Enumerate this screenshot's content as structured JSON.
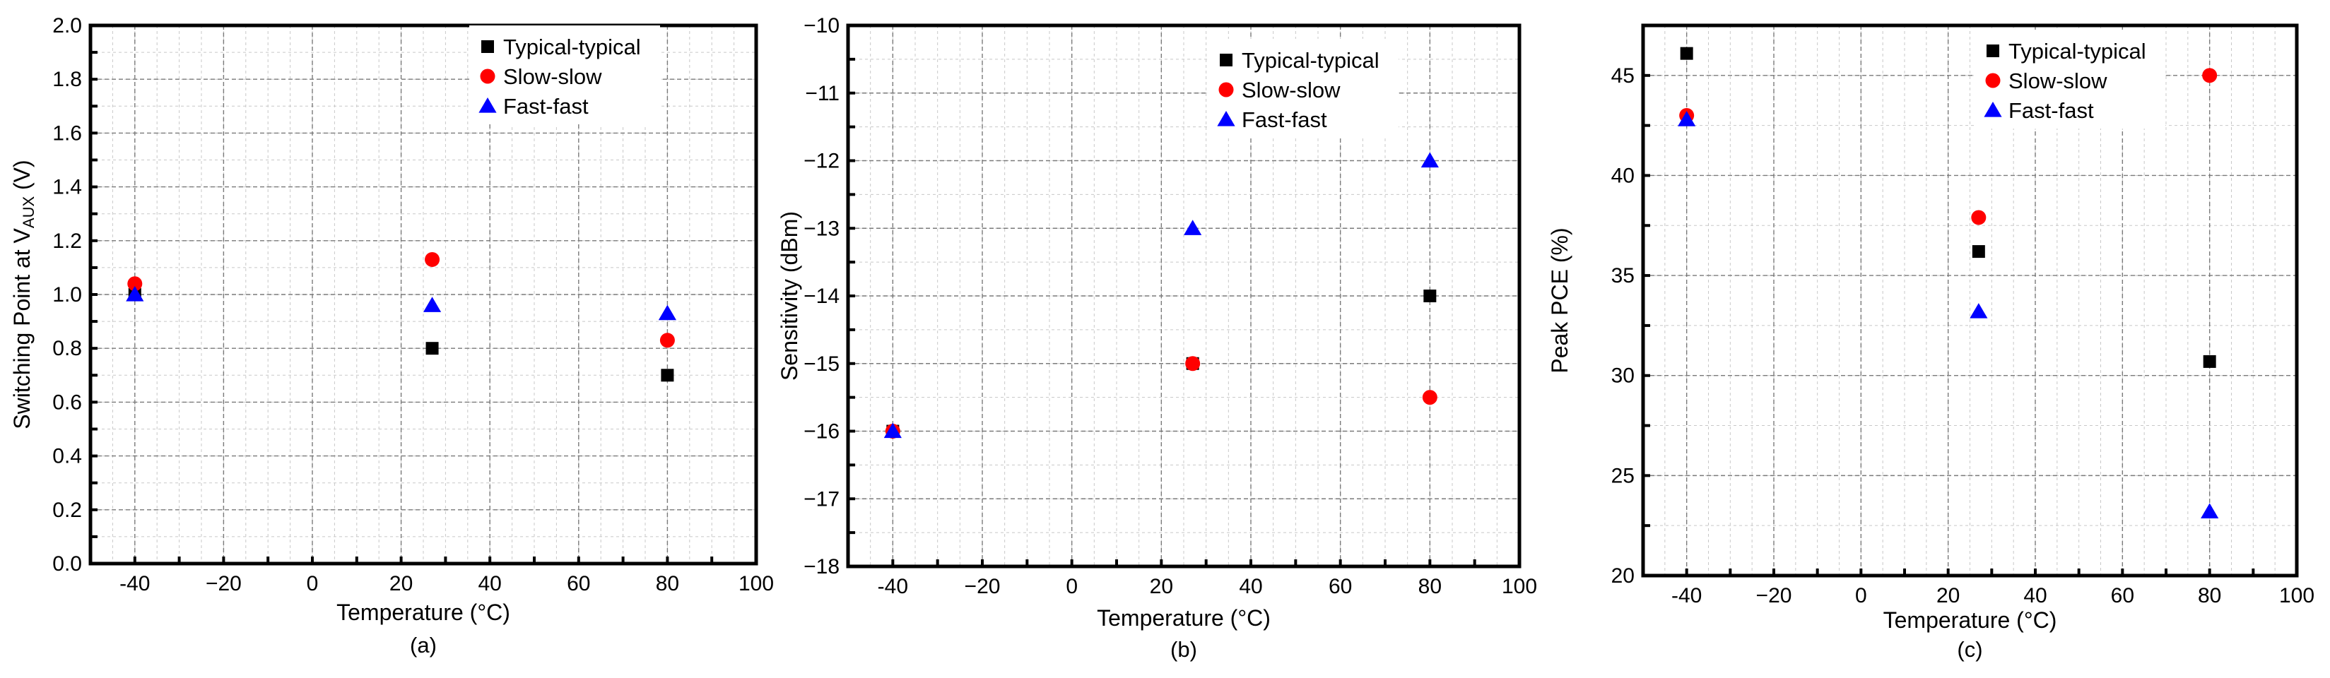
{
  "chart_data": [
    {
      "type": "scatter",
      "panel_label": "(a)",
      "title": "",
      "xlabel": "Temperature (°C)",
      "ylabel": {
        "prefix": "Switching Point at V",
        "subscript": "AUX",
        "suffix": " (V)"
      },
      "xlim": [
        -50,
        100
      ],
      "ylim": [
        0.0,
        2.0
      ],
      "xticks": [
        -40,
        -20,
        0,
        20,
        40,
        60,
        80,
        100
      ],
      "xtick_labels": [
        "-40",
        "−20",
        "0",
        "20",
        "40",
        "60",
        "80",
        "100"
      ],
      "yticks": [
        0.0,
        0.2,
        0.4,
        0.6,
        0.8,
        1.0,
        1.2,
        1.4,
        1.6,
        1.8,
        2.0
      ],
      "ytick_labels": [
        "0.0",
        "0.2",
        "0.4",
        "0.6",
        "0.8",
        "1.0",
        "1.2",
        "1.4",
        "1.6",
        "1.8",
        "2.0"
      ],
      "legend_position": "top-right",
      "series": [
        {
          "name": "Typical-typical",
          "marker": "square",
          "color": "#000000",
          "x": [
            -40,
            27,
            80
          ],
          "y": [
            1.0,
            0.8,
            0.7
          ]
        },
        {
          "name": "Slow-slow",
          "marker": "circle",
          "color": "#ff0000",
          "x": [
            -40,
            27,
            80
          ],
          "y": [
            1.04,
            1.13,
            0.83
          ]
        },
        {
          "name": "Fast-fast",
          "marker": "triangle",
          "color": "#0000ff",
          "x": [
            -40,
            27,
            80
          ],
          "y": [
            1.0,
            0.96,
            0.93
          ]
        }
      ]
    },
    {
      "type": "scatter",
      "panel_label": "(b)",
      "title": "",
      "xlabel": "Temperature (°C)",
      "ylabel": {
        "prefix": "Sensitivity (dBm)",
        "subscript": "",
        "suffix": ""
      },
      "xlim": [
        -50,
        100
      ],
      "ylim": [
        -18,
        -10
      ],
      "xticks": [
        -40,
        -20,
        0,
        20,
        40,
        60,
        80,
        100
      ],
      "xtick_labels": [
        "-40",
        "−20",
        "0",
        "20",
        "40",
        "60",
        "80",
        "100"
      ],
      "yticks": [
        -18,
        -17,
        -16,
        -15,
        -14,
        -13,
        -12,
        -11,
        -10
      ],
      "ytick_labels": [
        "−18",
        "−17",
        "−16",
        "−15",
        "−14",
        "−13",
        "−12",
        "−11",
        "−10"
      ],
      "legend_position": "top-right",
      "series": [
        {
          "name": "Typical-typical",
          "marker": "square",
          "color": "#000000",
          "x": [
            -40,
            27,
            80
          ],
          "y": [
            -16,
            -15,
            -14
          ]
        },
        {
          "name": "Slow-slow",
          "marker": "circle",
          "color": "#ff0000",
          "x": [
            -40,
            27,
            80
          ],
          "y": [
            -16,
            -15,
            -15.5
          ]
        },
        {
          "name": "Fast-fast",
          "marker": "triangle",
          "color": "#0000ff",
          "x": [
            -40,
            27,
            80
          ],
          "y": [
            -16,
            -13,
            -12
          ]
        }
      ]
    },
    {
      "type": "scatter",
      "panel_label": "(c)",
      "title": "",
      "xlabel": "Temperature (°C)",
      "ylabel": {
        "prefix": "Peak PCE (%)",
        "subscript": "",
        "suffix": ""
      },
      "xlim": [
        -50,
        100
      ],
      "ylim": [
        20,
        47.5
      ],
      "xticks": [
        -40,
        -20,
        0,
        20,
        40,
        60,
        80,
        100
      ],
      "xtick_labels": [
        "-40",
        "−20",
        "0",
        "20",
        "40",
        "60",
        "80",
        "100"
      ],
      "yticks": [
        20,
        25,
        30,
        35,
        40,
        45
      ],
      "ytick_labels": [
        "20",
        "25",
        "30",
        "35",
        "40",
        "45"
      ],
      "legend_position": "top-right",
      "series": [
        {
          "name": "Typical-typical",
          "marker": "square",
          "color": "#000000",
          "x": [
            -40,
            27,
            80
          ],
          "y": [
            46.1,
            36.2,
            30.7
          ]
        },
        {
          "name": "Slow-slow",
          "marker": "circle",
          "color": "#ff0000",
          "x": [
            -40,
            27,
            80
          ],
          "y": [
            43.0,
            37.9,
            45.0
          ]
        },
        {
          "name": "Fast-fast",
          "marker": "triangle",
          "color": "#0000ff",
          "x": [
            -40,
            27,
            80
          ],
          "y": [
            42.8,
            33.2,
            23.2
          ]
        }
      ]
    }
  ]
}
